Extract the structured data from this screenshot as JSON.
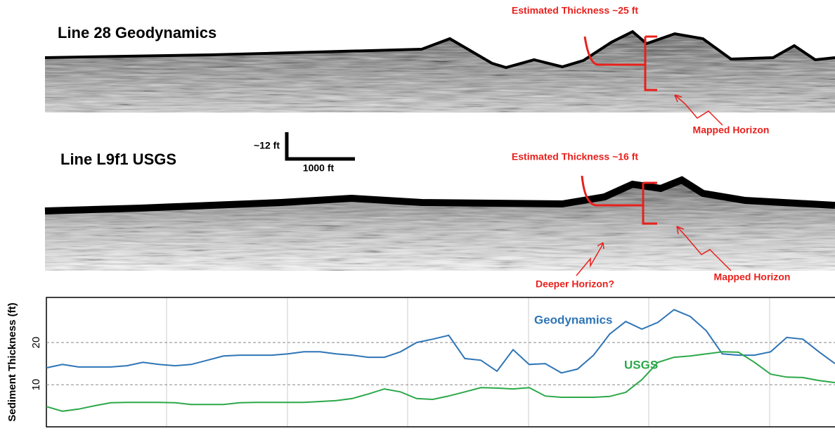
{
  "profiles": [
    {
      "label": "Line 28 Geodynamics",
      "thickness_note": "Estimated Thickness ~25 ft",
      "horizon_notes": [
        "Mapped Horizon"
      ]
    },
    {
      "label": "Line L9f1 USGS",
      "thickness_note": "Estimated Thickness ~16 ft",
      "horizon_notes": [
        "Deeper Horizon?",
        "Mapped Horizon"
      ]
    }
  ],
  "scale_bar": {
    "vertical": "~12 ft",
    "horizontal": "1000 ft"
  },
  "chart_data": {
    "type": "line",
    "y_label": "Sediment Thickness (ft)",
    "categories": [
      null,
      null,
      null,
      null,
      null,
      null,
      null,
      null,
      null,
      null,
      null,
      null,
      null,
      null,
      null,
      null,
      null,
      null,
      null,
      null,
      null,
      null,
      null,
      null,
      null,
      null,
      null,
      null,
      null,
      null,
      null,
      null,
      null,
      null,
      null,
      null,
      null,
      null,
      null,
      null,
      null,
      null,
      null,
      null,
      null,
      null,
      null,
      null,
      null,
      null
    ],
    "series": [
      {
        "name": "Geodynamics",
        "color": "#2e75b6",
        "values": [
          14.0,
          14.8,
          14.2,
          14.2,
          14.2,
          14.5,
          15.3,
          14.8,
          14.5,
          14.8,
          15.8,
          16.8,
          17.0,
          17.0,
          17.0,
          17.3,
          17.8,
          17.8,
          17.3,
          17.0,
          16.5,
          16.5,
          17.8,
          20.0,
          20.8,
          21.7,
          16.2,
          15.8,
          13.2,
          18.3,
          14.8,
          15.0,
          12.8,
          13.7,
          17.0,
          22.0,
          25.0,
          23.2,
          24.8,
          27.8,
          26.2,
          22.8,
          17.3,
          17.0,
          17.0,
          17.8,
          21.2,
          20.8,
          17.8,
          15.0
        ]
      },
      {
        "name": "USGS",
        "color": "#2ca84a",
        "values": [
          4.8,
          3.7,
          4.2,
          5.0,
          5.7,
          5.8,
          5.8,
          5.8,
          5.7,
          5.3,
          5.3,
          5.3,
          5.7,
          5.8,
          5.8,
          5.8,
          5.8,
          6.0,
          6.2,
          6.7,
          7.8,
          9.0,
          8.3,
          6.7,
          6.5,
          7.3,
          8.3,
          9.3,
          9.2,
          9.0,
          9.3,
          7.3,
          7.0,
          7.0,
          7.0,
          7.2,
          8.2,
          11.2,
          15.3,
          16.5,
          16.8,
          17.3,
          17.8,
          17.7,
          15.3,
          12.5,
          11.8,
          11.7,
          11.0,
          10.5
        ]
      }
    ],
    "ylim": [
      0,
      30.7
    ],
    "yticks": [
      10,
      20
    ],
    "grid": true
  }
}
